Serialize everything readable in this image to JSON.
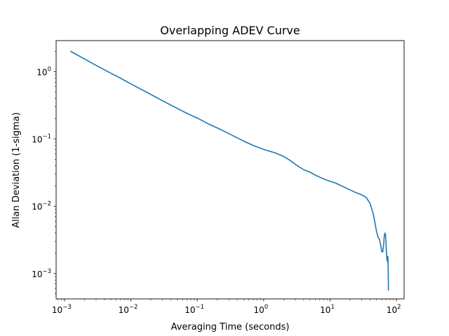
{
  "chart_data": {
    "type": "line",
    "title": "Overlapping ADEV Curve",
    "xlabel": "Averaging Time (seconds)",
    "ylabel": "Allan Deviation (1-sigma)",
    "xscale": "log",
    "yscale": "log",
    "xlim": [
      0.00075,
      130
    ],
    "ylim": [
      0.00042,
      2.9
    ],
    "grid": false,
    "legend": "none",
    "x_ticks": [
      {
        "base": "10",
        "exp": "−3",
        "value": 0.001
      },
      {
        "base": "10",
        "exp": "−2",
        "value": 0.01
      },
      {
        "base": "10",
        "exp": "−1",
        "value": 0.1
      },
      {
        "base": "10",
        "exp": "0",
        "value": 1
      },
      {
        "base": "10",
        "exp": "1",
        "value": 10
      },
      {
        "base": "10",
        "exp": "2",
        "value": 100
      }
    ],
    "y_ticks": [
      {
        "base": "10",
        "exp": "−3",
        "value": 0.001
      },
      {
        "base": "10",
        "exp": "−2",
        "value": 0.01
      },
      {
        "base": "10",
        "exp": "−1",
        "value": 0.1
      },
      {
        "base": "10",
        "exp": "0",
        "value": 1
      }
    ],
    "series": [
      {
        "color": "#1f77b4",
        "x": [
          0.00125,
          0.002,
          0.003,
          0.005,
          0.007,
          0.01,
          0.02,
          0.03,
          0.05,
          0.07,
          0.1,
          0.15,
          0.2,
          0.3,
          0.5,
          0.7,
          1.0,
          1.5,
          2.0,
          2.5,
          3.0,
          3.5,
          4.0,
          5.0,
          6.0,
          7.0,
          8.0,
          10,
          12,
          15,
          20,
          25,
          30,
          35,
          40,
          45,
          50,
          53,
          55,
          58,
          60,
          62,
          64,
          65,
          66,
          67,
          68,
          69,
          70,
          71,
          72,
          73,
          74,
          75,
          75.5
        ],
        "y": [
          2.0,
          1.55,
          1.24,
          0.95,
          0.8,
          0.66,
          0.46,
          0.37,
          0.285,
          0.24,
          0.205,
          0.166,
          0.146,
          0.12,
          0.093,
          0.08,
          0.07,
          0.062,
          0.055,
          0.048,
          0.042,
          0.038,
          0.035,
          0.032,
          0.029,
          0.027,
          0.0255,
          0.0235,
          0.0222,
          0.02,
          0.0175,
          0.0158,
          0.0148,
          0.0135,
          0.011,
          0.0075,
          0.0042,
          0.0034,
          0.0033,
          0.0026,
          0.0021,
          0.0021,
          0.0027,
          0.0034,
          0.0038,
          0.004,
          0.0038,
          0.0032,
          0.0024,
          0.0018,
          0.0016,
          0.0015,
          0.0018,
          0.00115,
          0.00057
        ]
      }
    ]
  }
}
